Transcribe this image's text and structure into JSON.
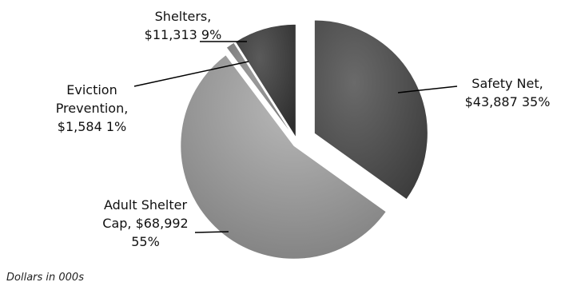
{
  "chart_data": {
    "type": "pie",
    "title": "",
    "unit_note": "Dollars in 000s",
    "slices": [
      {
        "name": "Safety Net",
        "value": 43887,
        "percent_label": "35%",
        "value_label": "$43,887",
        "color": "#4a4a4a",
        "label_lines": [
          "Safety Net,",
          "$43,887 35%"
        ]
      },
      {
        "name": "Adult Shelter Cap",
        "value": 68992,
        "percent_label": "55%",
        "value_label": "$68,992",
        "color": "#8c8c8c",
        "label_lines": [
          "Adult Shelter",
          "Cap, $68,992",
          "55%"
        ]
      },
      {
        "name": "Eviction Prevention",
        "value": 1584,
        "percent_label": "1%",
        "value_label": "$1,584",
        "color": "#7a7a7a",
        "label_lines": [
          "Eviction",
          "Prevention,",
          "$1,584 1%"
        ]
      },
      {
        "name": "Shelters",
        "value": 11313,
        "percent_label": "9%",
        "value_label": "$11,313",
        "color": "#3a3a3a",
        "label_lines": [
          "Shelters,",
          "$11,313  9%"
        ]
      }
    ],
    "legend": "none",
    "exploded": true
  }
}
